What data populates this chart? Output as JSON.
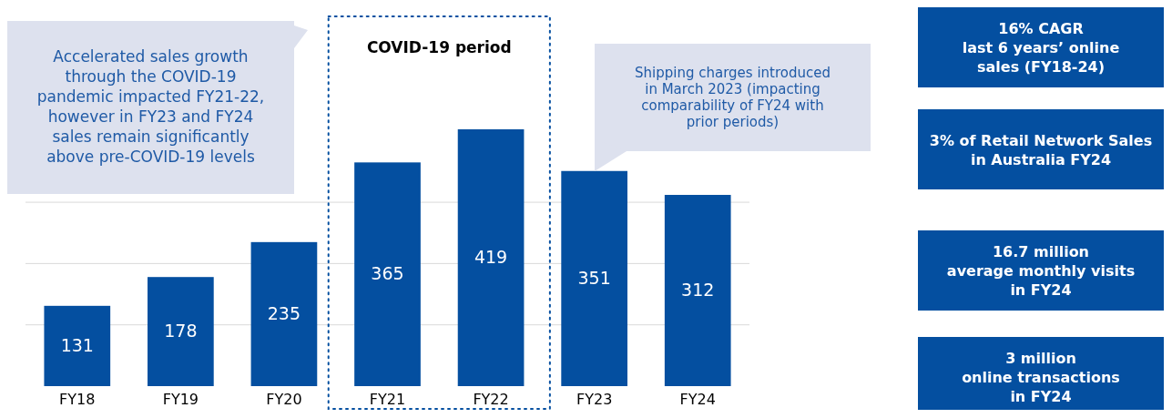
{
  "chart_data": [
    {
      "type": "bar",
      "categories": [
        "FY18",
        "FY19",
        "FY20",
        "FY21",
        "FY22",
        "FY23",
        "FY24"
      ],
      "values": [
        131,
        178,
        235,
        365,
        419,
        351,
        312
      ],
      "color": "#044fa0",
      "data_labels": true,
      "yticks": [
        {
          "value": 100,
          "label": null
        },
        {
          "value": 200,
          "label": null
        },
        {
          "value": 300,
          "label": null
        }
      ],
      "grid": "y",
      "tick_labels": "x",
      "annotations": [
        "COVID-19 period",
        "Accelerated sales growth\nthrough the COVID-19\npandemic impacted FY21-22,\nhowever in FY23 and FY24\nsales remain significantly\nabove pre-COVID-19 levels",
        "Shipping charges introduced\nin March 2023 (impacting\ncomparability of FY24 with\nprior periods)"
      ]
    },
    {
      "type": "other",
      "color": "#044fa0",
      "annotations": [
        "16% CAGR\nlast 6 years’ online\nsales (FY18-24)",
        "3% of Retail Network Sales\nin Australia FY24",
        "16.7 million\naverage monthly visits\nin FY24",
        "3 million\nonline transactions\nin FY24"
      ]
    }
  ]
}
